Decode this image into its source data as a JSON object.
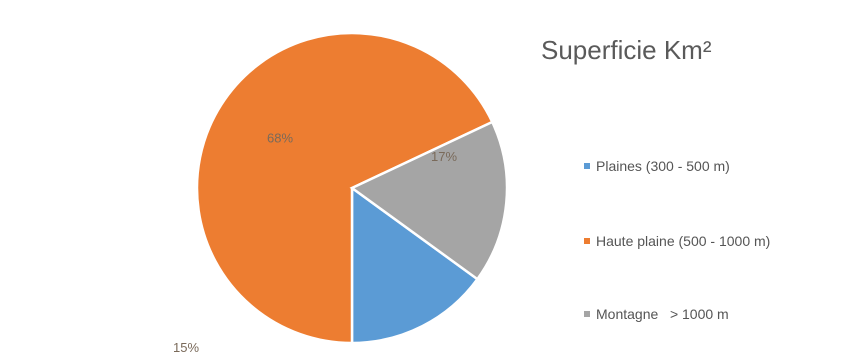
{
  "chart_data": {
    "type": "pie",
    "title": "Superficie Km²",
    "categories": [
      "Plaines (300 - 500 m)",
      "Haute plaine (500 - 1000 m)",
      "Montagne   > 1000 m"
    ],
    "values": [
      15,
      68,
      17
    ],
    "data_labels": [
      "15%",
      "68%",
      "17%"
    ],
    "colors": [
      "#5b9bd5",
      "#ed7d31",
      "#a5a5a5"
    ],
    "legend_position": "right"
  }
}
